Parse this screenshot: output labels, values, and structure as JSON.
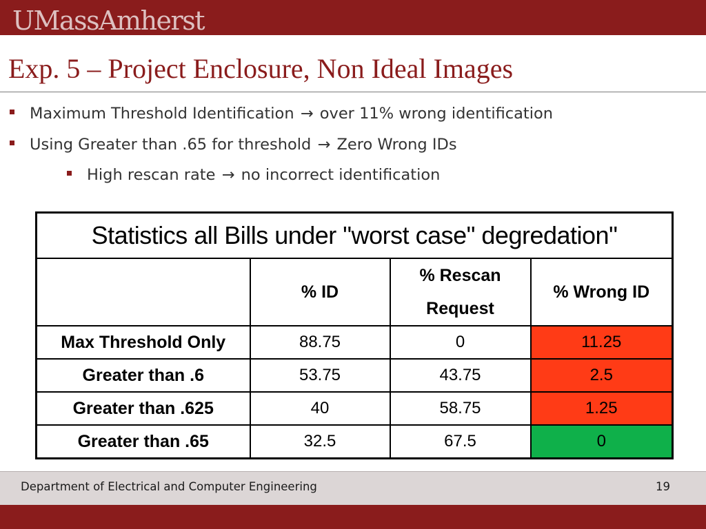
{
  "header": {
    "logo_text": "UMassAmherst"
  },
  "slide": {
    "title": "Exp. 5 – Project Enclosure, Non Ideal Images",
    "bullets": [
      {
        "text_before": "Maximum Threshold Identification",
        "arrow": "→",
        "text_after": "over 11% wrong identification"
      },
      {
        "text_before": "Using Greater than .65 for threshold",
        "arrow": "→",
        "text_after": "Zero Wrong IDs"
      },
      {
        "text_before": "High rescan rate",
        "arrow": "→",
        "text_after": "no incorrect identification"
      }
    ]
  },
  "table": {
    "caption": "Statistics all Bills under \"worst case\" degredation\"",
    "headers": [
      "",
      "% ID",
      "% Rescan Request",
      "% Wrong ID"
    ],
    "rows": [
      {
        "label": "Max Threshold Only",
        "id": "88.75",
        "rescan": "0",
        "wrong": "11.25",
        "wrong_status": "bad"
      },
      {
        "label": "Greater than .6",
        "id": "53.75",
        "rescan": "43.75",
        "wrong": "2.5",
        "wrong_status": "bad"
      },
      {
        "label": "Greater than .625",
        "id": "40",
        "rescan": "58.75",
        "wrong": "1.25",
        "wrong_status": "bad"
      },
      {
        "label": "Greater than .65",
        "id": "32.5",
        "rescan": "67.5",
        "wrong": "0",
        "wrong_status": "good"
      }
    ],
    "colors": {
      "bad": "#ff3b16",
      "good": "#0fb04a"
    }
  },
  "footer": {
    "department": "Department of Electrical and Computer Engineering",
    "page_number": "19"
  },
  "theme": {
    "maroon": "#8a1c1c",
    "footer_gray": "#dcd6d6"
  }
}
